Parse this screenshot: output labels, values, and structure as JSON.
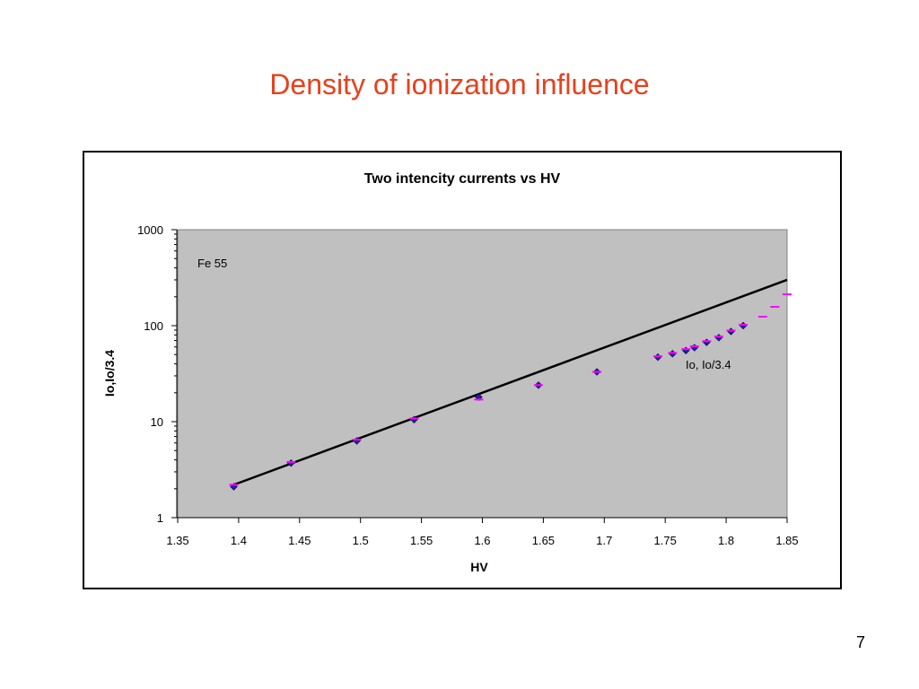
{
  "slide": {
    "title": "Density of ionization influence",
    "page_number": "7"
  },
  "colors": {
    "title": "#e8401c",
    "plot_background": "#c0c0c0",
    "fit_line": "#000000",
    "io_marker": "#1f1fa0",
    "io_scaled_marker": "#ff00ff"
  },
  "chart_data": {
    "type": "scatter",
    "title": "Two intencity currents vs HV",
    "xlabel": "HV",
    "ylabel": "Io,Io/3.4",
    "xlim": [
      1.35,
      1.85
    ],
    "ylim": [
      1,
      1000
    ],
    "yscale": "log",
    "grid": false,
    "x_ticks": [
      "1.35",
      "1.4",
      "1.45",
      "1.5",
      "1.55",
      "1.6",
      "1.65",
      "1.7",
      "1.75",
      "1.8",
      "1.85"
    ],
    "y_ticks": [
      "1",
      "10",
      "100",
      "1000"
    ],
    "annotations": [
      "Fe 55",
      "Io, Io/3.4"
    ],
    "series": [
      {
        "name": "Io",
        "marker": "diamond",
        "x": [
          1.396,
          1.443,
          1.497,
          1.544,
          1.597,
          1.646,
          1.694,
          1.744,
          1.756,
          1.767,
          1.774,
          1.784,
          1.794,
          1.804,
          1.814
        ],
        "y": [
          2.1,
          3.7,
          6.3,
          10.5,
          18,
          24,
          33,
          47,
          51,
          55,
          59,
          67,
          75,
          87,
          100
        ]
      },
      {
        "name": "Io/3.4",
        "marker": "dash",
        "x": [
          1.396,
          1.443,
          1.497,
          1.544,
          1.597,
          1.646,
          1.694,
          1.744,
          1.756,
          1.767,
          1.774,
          1.784,
          1.794,
          1.804,
          1.814,
          1.83,
          1.84,
          1.85
        ],
        "y": [
          2.2,
          3.8,
          6.5,
          10.8,
          17,
          24,
          33,
          48,
          52,
          57,
          61,
          69,
          77,
          89,
          102,
          124,
          157,
          212
        ]
      },
      {
        "marker": "line",
        "x": [
          1.396,
          1.85
        ],
        "y": [
          2.2,
          300
        ]
      }
    ]
  }
}
